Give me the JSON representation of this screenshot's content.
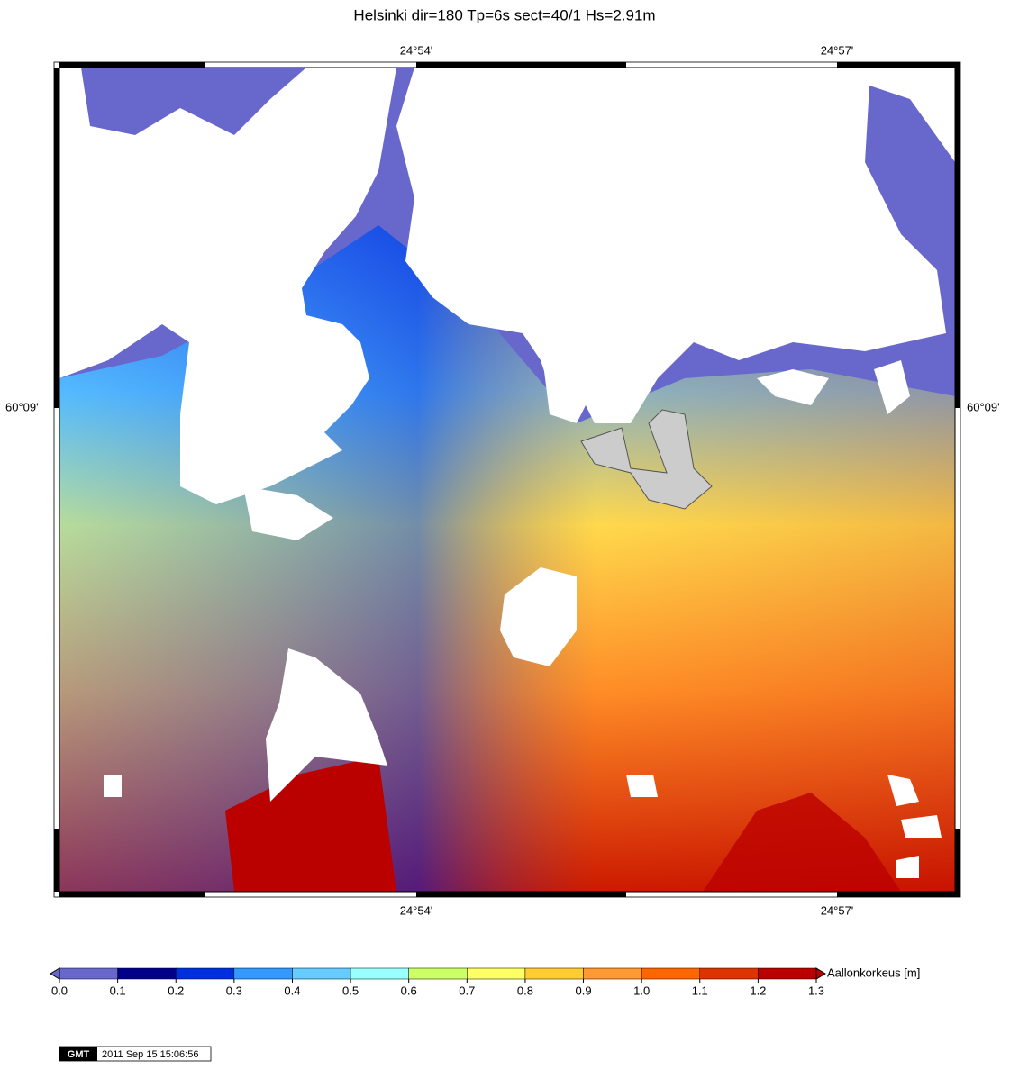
{
  "title": "Helsinki  dir=180  Tp=6s  sect=40/1  Hs=2.91m",
  "lon_labels": [
    "24°54'",
    "24°57'"
  ],
  "lat_labels": [
    "60°09'"
  ],
  "colorbar": {
    "label": "Aallonkorkeus  [m]",
    "ticks": [
      {
        "value": 0,
        "label": "0.0"
      },
      0.1,
      0.2,
      0.3,
      0.4,
      0.5,
      0.6,
      0.7,
      0.8,
      0.9,
      {
        "value": 1,
        "label": "1.0"
      },
      1.1,
      1.2,
      1.3
    ],
    "colors": [
      "#6868cc",
      "#00008b",
      "#0030dd",
      "#3399ff",
      "#66ccff",
      "#99ffff",
      "#ccff66",
      "#ffff66",
      "#ffcc33",
      "#ff9933",
      "#ff6600",
      "#dd3300",
      "#bb0000"
    ]
  },
  "stamp": {
    "logo": "GMT",
    "time": "2011 Sep 15 15:06:56"
  }
}
